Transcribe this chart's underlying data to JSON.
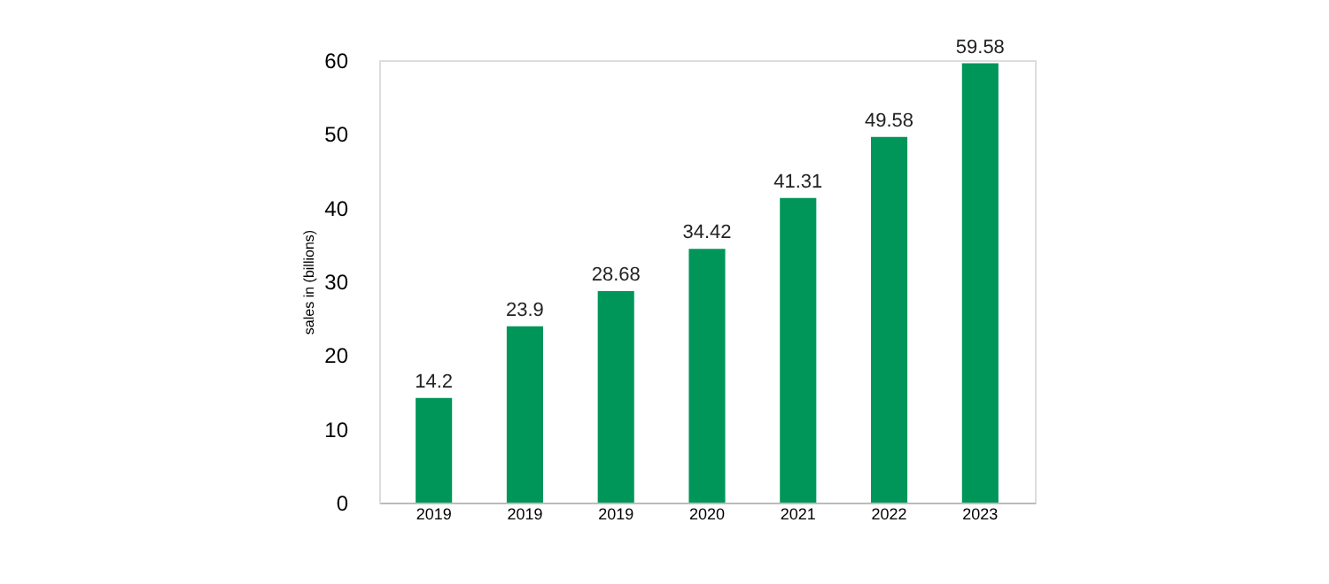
{
  "chart_data": {
    "type": "bar",
    "ylabel": "sales in  (billions)",
    "categories": [
      "2019",
      "2019",
      "2019",
      "2020",
      "2021",
      "2022",
      "2023"
    ],
    "values": [
      14.2,
      23.9,
      28.68,
      34.42,
      41.31,
      49.58,
      59.58
    ],
    "color": "#00965a",
    "ylim": [
      0,
      60
    ],
    "yticks": [
      0,
      10,
      20,
      30,
      40,
      50,
      60
    ],
    "grid": false,
    "data_labels": true
  }
}
